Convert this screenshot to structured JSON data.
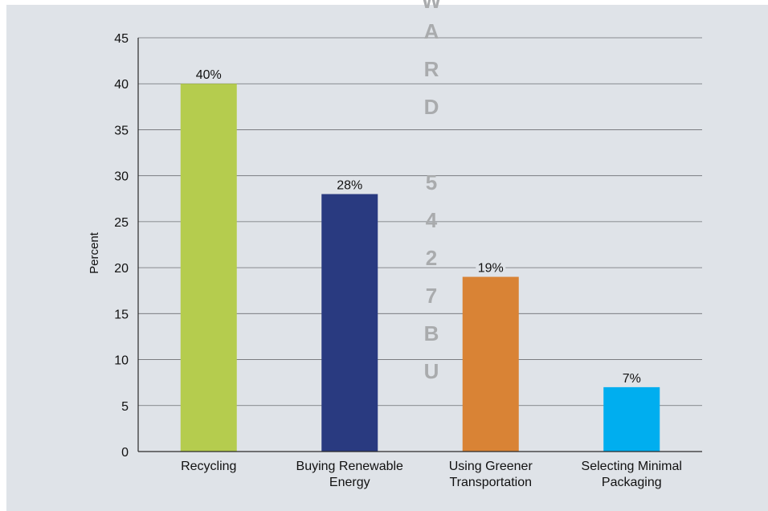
{
  "chart_data": {
    "type": "bar",
    "categories": [
      [
        "Recycling"
      ],
      [
        "Buying Renewable",
        "Energy"
      ],
      [
        "Using Greener",
        "Transportation"
      ],
      [
        "Selecting Minimal",
        "Packaging"
      ]
    ],
    "values": [
      40,
      28,
      19,
      7
    ],
    "data_labels": [
      "40%",
      "28%",
      "19%",
      "7%"
    ],
    "colors": [
      "#b5cc4e",
      "#293a80",
      "#d98335",
      "#00aeef"
    ],
    "ylabel": "Percent",
    "ylim": [
      0,
      45
    ],
    "yticks": [
      0,
      5,
      10,
      15,
      20,
      25,
      30,
      35,
      40,
      45
    ],
    "grid": true,
    "watermark": [
      "W",
      "A",
      "R",
      "D",
      "5",
      "4",
      "2",
      "7",
      "B",
      "U"
    ]
  }
}
